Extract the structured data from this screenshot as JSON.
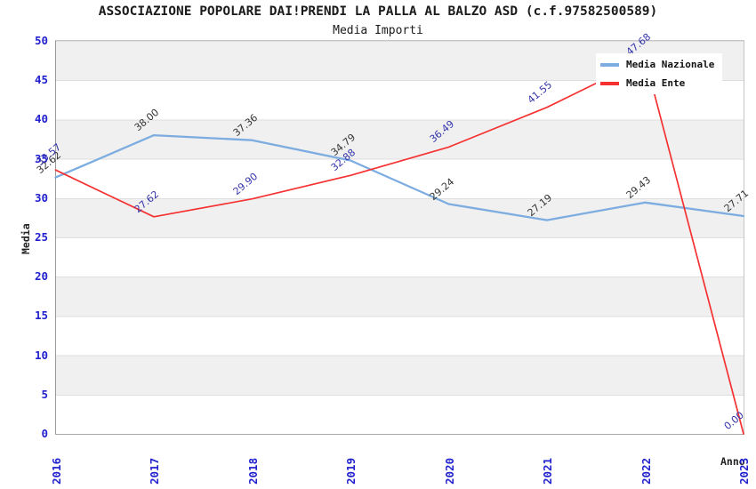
{
  "chart_data": {
    "type": "line",
    "title": "ASSOCIAZIONE POPOLARE DAI!PRENDI LA PALLA AL BALZO ASD (c.f.97582500589)",
    "subtitle": "Media Importi",
    "xlabel": "Anno",
    "ylabel": "Media",
    "categories": [
      "2016",
      "2017",
      "2018",
      "2019",
      "2020",
      "2021",
      "2022",
      "2023"
    ],
    "series": [
      {
        "name": "Media Nazionale",
        "color": "#7cace0",
        "label_color": "#333333",
        "line_width": 2.3,
        "values": [
          32.62,
          38.0,
          37.36,
          34.79,
          29.24,
          27.19,
          29.43,
          27.71
        ]
      },
      {
        "name": "Media Ente",
        "color": "#f53131",
        "label_color": "#3333aa",
        "line_width": 1.7,
        "values": [
          33.57,
          27.62,
          29.9,
          32.88,
          36.49,
          41.55,
          47.68,
          0.0
        ]
      }
    ],
    "ylim": [
      0,
      50
    ],
    "y_tick_step": 5,
    "grid": "horizontal-only",
    "band_colors": [
      "#f0f0f0",
      "#ffffff"
    ],
    "legend_position": "top-right",
    "value_label_decimals": 2,
    "tick_color": "#2121ce"
  }
}
